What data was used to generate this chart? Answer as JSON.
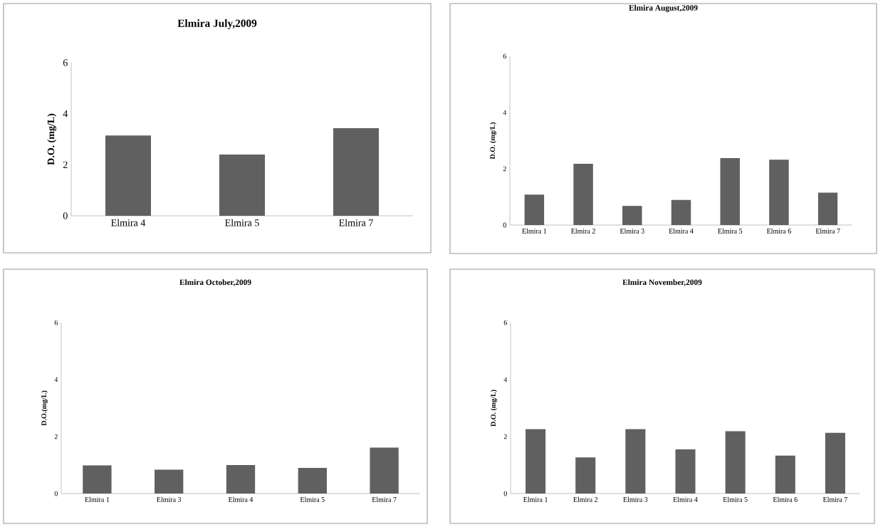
{
  "chart_data": [
    {
      "type": "bar",
      "title": "Elmira July,2009",
      "ylabel": "D.O. (mg/L)",
      "categories": [
        "Elmira 4",
        "Elmira 5",
        "Elmira 7"
      ],
      "values": [
        3.15,
        2.4,
        3.43
      ],
      "color": "#606060",
      "ylim": [
        0,
        6
      ],
      "yticks": [
        0,
        2,
        4,
        6
      ]
    },
    {
      "type": "bar",
      "title": "Elmira August,2009",
      "ylabel": "D.O. (mg/L)",
      "categories": [
        "Elmira 1",
        "Elmira 2",
        "Elmira 3",
        "Elmira 4",
        "Elmira 5",
        "Elmira 6",
        "Elmira 7"
      ],
      "values": [
        1.08,
        2.18,
        0.68,
        0.89,
        2.38,
        2.32,
        1.15
      ],
      "color": "#606060",
      "ylim": [
        0,
        6
      ],
      "yticks": [
        0,
        2,
        4,
        6
      ]
    },
    {
      "type": "bar",
      "title": "Elmira October,2009",
      "ylabel": "D.O.(mg/L)",
      "categories": [
        "Elmira 1",
        "Elmira 3",
        "Elmira 4",
        "Elmira 5",
        "Elmira 7"
      ],
      "values": [
        0.99,
        0.84,
        1.0,
        0.9,
        1.61
      ],
      "color": "#606060",
      "ylim": [
        0,
        6
      ],
      "yticks": [
        0,
        2,
        4,
        6
      ]
    },
    {
      "type": "bar",
      "title": "Elmira November,2009",
      "ylabel": "D.O. (mg/L)",
      "categories": [
        "Elmira 1",
        "Elmira 2",
        "Elmira 3",
        "Elmira 4",
        "Elmira 5",
        "Elmira 6",
        "Elmira 7"
      ],
      "values": [
        2.26,
        1.27,
        2.26,
        1.55,
        2.19,
        1.33,
        2.13
      ],
      "color": "#606060",
      "ylim": [
        0,
        6
      ],
      "yticks": [
        0,
        2,
        4,
        6
      ]
    }
  ]
}
